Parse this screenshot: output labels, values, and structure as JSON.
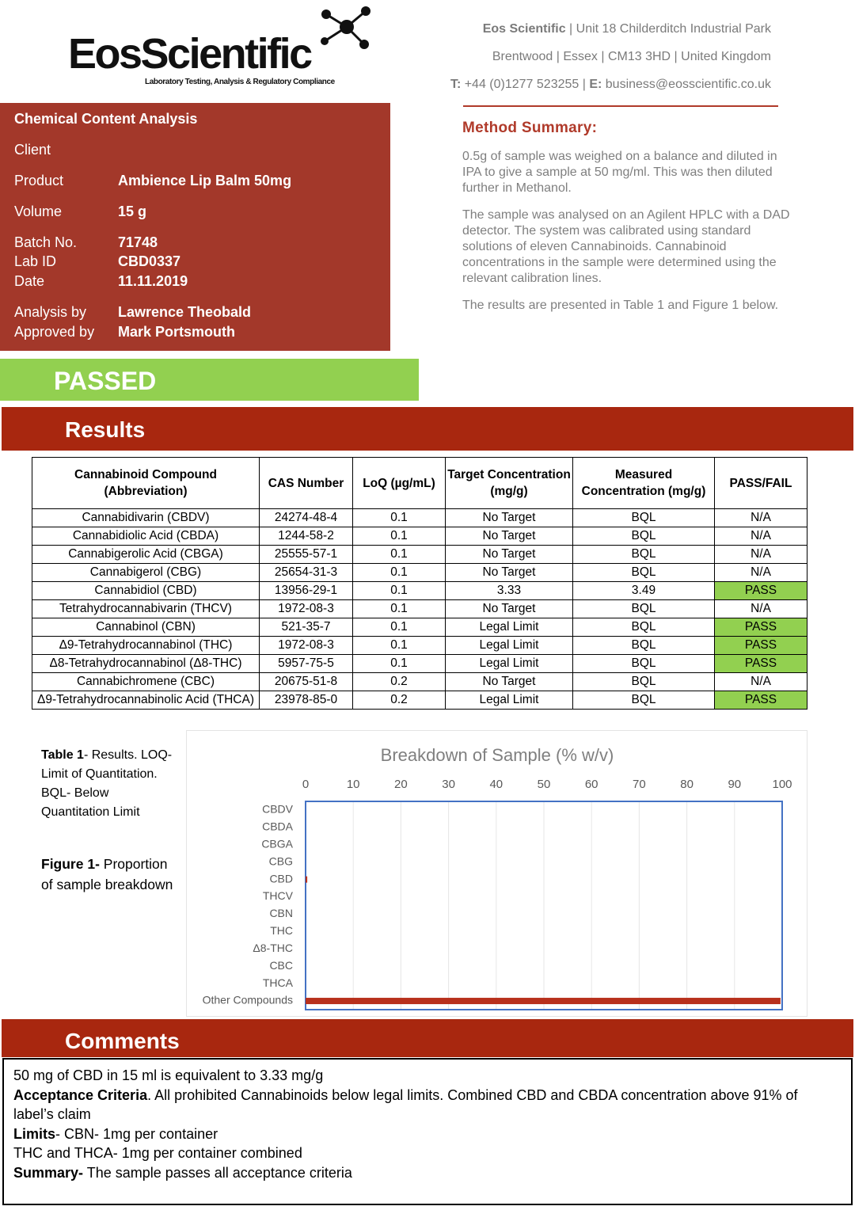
{
  "header": {
    "logo": "EosScientific",
    "tagline": "Laboratory Testing, Analysis & Regulatory Compliance",
    "address": [
      [
        {
          "text": "Eos Scientific",
          "bold": true
        },
        {
          "text": " | Unit 18 Childerditch Industrial Park"
        }
      ],
      [
        {
          "text": "Brentwood | Essex | CM13 3HD | United Kingdom"
        }
      ],
      [
        {
          "text": "T:",
          "bold": true
        },
        {
          "text": " +44 (0)1277 523255 | "
        },
        {
          "text": "E:",
          "bold": true
        },
        {
          "text": " business@eosscientific.co.uk"
        }
      ]
    ]
  },
  "info_panel": {
    "title": "Chemical Content Analysis",
    "rows": [
      {
        "label": "Client"
      },
      {
        "label": "Product",
        "value": "Ambience Lip Balm 50mg"
      },
      {
        "label": "Volume",
        "value": "15 g"
      },
      {
        "label": "Batch No.",
        "value": "71748"
      },
      {
        "label": "Lab ID",
        "value": "CBD0337"
      },
      {
        "label": "Date",
        "value": "11.11.2019"
      },
      {
        "label": "Analysis by",
        "value": "Lawrence Theobald"
      },
      {
        "label": "Approved by",
        "value": "Mark Portsmouth"
      }
    ]
  },
  "method_summary": {
    "title": "Method Summary:",
    "paragraphs": [
      "0.5g of sample was weighed on a balance and diluted in IPA to give a sample at 50 mg/ml. This was then diluted further in Methanol.",
      "The sample was analysed on an Agilent HPLC with a DAD detector. The system was calibrated using standard solutions of eleven Cannabinoids. Cannabinoid concentrations in the sample were determined using the relevant calibration lines.",
      "The results are presented in Table 1 and Figure 1 below."
    ]
  },
  "status": "PASSED",
  "results_heading": "Results",
  "table": {
    "highlight_color": "#92d050",
    "header": [
      "Cannabinoid Compound (Abbreviation)",
      "CAS Number",
      "LoQ (µg/mL)",
      "Target Concentration (mg/g)",
      "Measured Concentration (mg/g)",
      "PASS/FAIL"
    ],
    "rows": [
      {
        "cells": [
          "Cannabidivarin (CBDV)",
          "24274-48-4",
          "0.1",
          "No Target",
          "BQL",
          "N/A"
        ]
      },
      {
        "cells": [
          "Cannabidiolic Acid (CBDA)",
          "1244-58-2",
          "0.1",
          "No Target",
          "BQL",
          "N/A"
        ]
      },
      {
        "cells": [
          "Cannabigerolic Acid (CBGA)",
          "25555-57-1",
          "0.1",
          "No Target",
          "BQL",
          "N/A"
        ]
      },
      {
        "cells": [
          "Cannabigerol (CBG)",
          "25654-31-3",
          "0.1",
          "No Target",
          "BQL",
          "N/A"
        ]
      },
      {
        "cells": [
          "Cannabidiol (CBD)",
          "13956-29-1",
          "0.1",
          "3.33",
          "3.49",
          "PASS"
        ],
        "highlighted": true
      },
      {
        "cells": [
          "Tetrahydrocannabivarin (THCV)",
          "1972-08-3",
          "0.1",
          "No Target",
          "BQL",
          "N/A"
        ]
      },
      {
        "cells": [
          "Cannabinol (CBN)",
          "521-35-7",
          "0.1",
          "Legal Limit",
          "BQL",
          "PASS"
        ],
        "highlighted": true
      },
      {
        "cells": [
          "Δ9-Tetrahydrocannabinol (THC)",
          "1972-08-3",
          "0.1",
          "Legal Limit",
          "BQL",
          "PASS"
        ],
        "highlighted": true
      },
      {
        "cells": [
          "Δ8-Tetrahydrocannabinol (Δ8-THC)",
          "5957-75-5",
          "0.1",
          "Legal Limit",
          "BQL",
          "PASS"
        ],
        "highlighted": true
      },
      {
        "cells": [
          "Cannabichromene (CBC)",
          "20675-51-8",
          "0.2",
          "No Target",
          "BQL",
          "N/A"
        ]
      },
      {
        "cells": [
          "Δ9-Tetrahydrocannabinolic Acid (THCA)",
          "23978-85-0",
          "0.2",
          "Legal Limit",
          "BQL",
          "PASS"
        ],
        "highlighted": true
      }
    ]
  },
  "captions": {
    "table": [
      {
        "text": "Table 1",
        "bold": true
      },
      {
        "text": "- Results. LOQ- Limit of Quantitation. BQL- Below Quantitation Limit"
      }
    ],
    "figure": [
      {
        "text": "Figure 1-",
        "bold": true
      },
      {
        "text": " Proportion of sample breakdown"
      }
    ]
  },
  "chart_data": {
    "type": "barh",
    "title": "Breakdown of Sample (% w/v)",
    "categories": [
      "CBDV",
      "CBDA",
      "CBGA",
      "CBG",
      "CBD",
      "THCV",
      "CBN",
      "THC",
      "Δ8-THC",
      "CBC",
      "THCA",
      "Other Compounds"
    ],
    "values": [
      0,
      0,
      0,
      0,
      0.35,
      0,
      0,
      0,
      0,
      0,
      0,
      99.65
    ],
    "color": "#b8301c",
    "xlim": [
      0,
      100
    ],
    "xticks": [
      0,
      10,
      20,
      30,
      40,
      50,
      60,
      70,
      80,
      90,
      100
    ],
    "grid": true
  },
  "comments_heading": "Comments",
  "comments": [
    [
      {
        "text": "50 mg of CBD in 15 ml is equivalent to 3.33 mg/g"
      }
    ],
    [
      {
        "text": "Acceptance Criteria",
        "bold": true
      },
      {
        "text": ". All prohibited Cannabinoids below legal limits. Combined CBD and CBDA concentration above 91% of label’s claim"
      }
    ],
    [
      {
        "text": "Limits",
        "bold": true
      },
      {
        "text": "- CBN- 1mg per container"
      }
    ],
    [
      {
        "text": "THC and THCA- 1mg per container combined"
      }
    ],
    [
      {
        "text": "Summary-",
        "bold": true
      },
      {
        "text": " The sample passes all acceptance criteria"
      }
    ]
  ]
}
